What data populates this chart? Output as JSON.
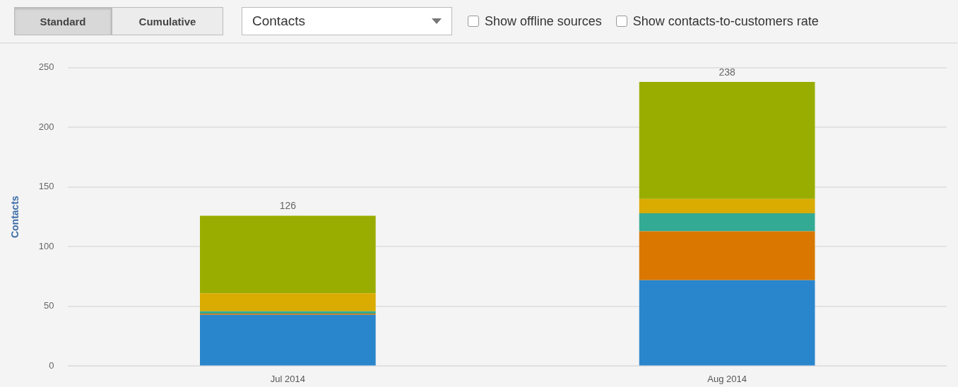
{
  "chart_data": {
    "type": "bar",
    "ylabel": "Contacts",
    "categories": [
      "Jul 2014",
      "Aug 2014"
    ],
    "series": [
      {
        "color": "#2a86cc",
        "values": [
          43,
          72
        ]
      },
      {
        "color": "#d97700",
        "values": [
          1,
          41
        ]
      },
      {
        "color": "#33aa93",
        "values": [
          2,
          15
        ]
      },
      {
        "color": "#daab00",
        "values": [
          15,
          12
        ]
      },
      {
        "color": "#99ad00",
        "values": [
          65,
          98
        ]
      }
    ],
    "stacked": true,
    "totals": [
      "126",
      "238"
    ],
    "ylim": [
      0,
      250
    ],
    "yticks": [
      0,
      50,
      100,
      150,
      200,
      250
    ],
    "grid": "y",
    "legend": false,
    "annotations": [
      "Standard",
      "Cumulative",
      "Contacts",
      "Show offline sources",
      "Show contacts-to-customers rate"
    ]
  }
}
